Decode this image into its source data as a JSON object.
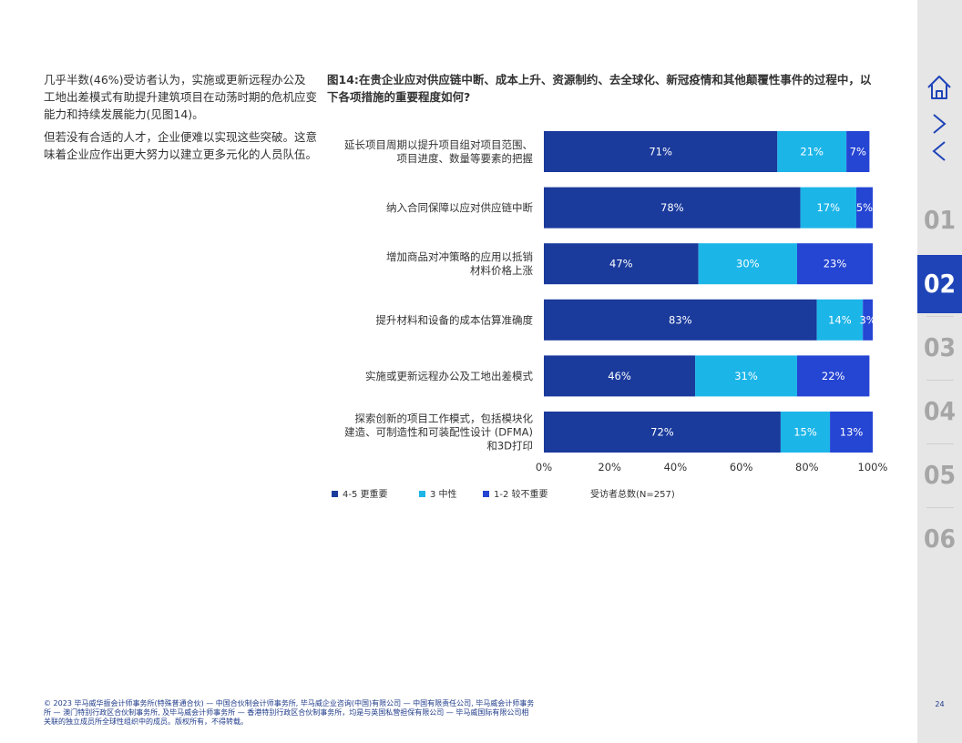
{
  "intro": {
    "paragraphs": [
      "几乎半数(46%)受访者认为，实施或更新远程办公及工地出差模式有助提升建筑项目在动荡时期的危机应变能力和持续发展能力(见图14)。",
      "但若没有合适的人才，企业便难以实现这些突破。这意味着企业应作出更大努力以建立更多元化的人员队伍。"
    ]
  },
  "chart_title": "图14:在贵企业应对供应链中断、成本上升、资源制约、去全球化、新冠疫情和其他颠覆性事件的过程中，以下各项措施的重要程度如何?",
  "chart_data": {
    "type": "bar",
    "orientation": "horizontal",
    "stacked": true,
    "categories": [
      [
        "延长项目周期以提升项目组对项目范围、",
        "项目进度、数量等要素的把握"
      ],
      [
        "纳入合同保障以应对供应链中断"
      ],
      [
        "增加商品对冲策略的应用以抵销",
        "材料价格上涨"
      ],
      [
        "提升材料和设备的成本估算准确度"
      ],
      [
        "实施或更新远程办公及工地出差模式"
      ],
      [
        "探索创新的项目工作模式，包括模块化",
        "建造、可制造性和可装配性设计 (DFMA)",
        "和3D打印"
      ]
    ],
    "series": [
      {
        "name": "4-5 更重要",
        "color": "#1a3a9c",
        "values": [
          71,
          78,
          47,
          83,
          46,
          72
        ]
      },
      {
        "name": "3 中性",
        "color": "#1cb5e8",
        "values": [
          21,
          17,
          30,
          14,
          31,
          15
        ]
      },
      {
        "name": "1-2 较不重要",
        "color": "#2545d3",
        "values": [
          7,
          5,
          23,
          3,
          22,
          13
        ]
      }
    ],
    "xlim": [
      0,
      100
    ],
    "xticks": [
      "0%",
      "20%",
      "40%",
      "60%",
      "80%",
      "100%"
    ],
    "legend_position": "bottom-left",
    "note": "受访者总数(N=257)"
  },
  "footer": "© 2023 毕马威华振会计师事务所(特殊普通合伙) — 中国合伙制会计师事务所, 毕马威企业咨询(中国)有限公司 — 中国有限责任公司, 毕马威会计师事务所 — 澳门特别行政区合伙制事务所, 及毕马威会计师事务所 — 香港特别行政区合伙制事务所，均是与英国私营担保有限公司 — 毕马威国际有限公司相关联的独立成员所全球性组织中的成员。版权所有，不得转载。",
  "sidebar": {
    "sections": [
      "01",
      "02",
      "03",
      "04",
      "05",
      "06"
    ],
    "active": "02",
    "page_number": "24"
  }
}
